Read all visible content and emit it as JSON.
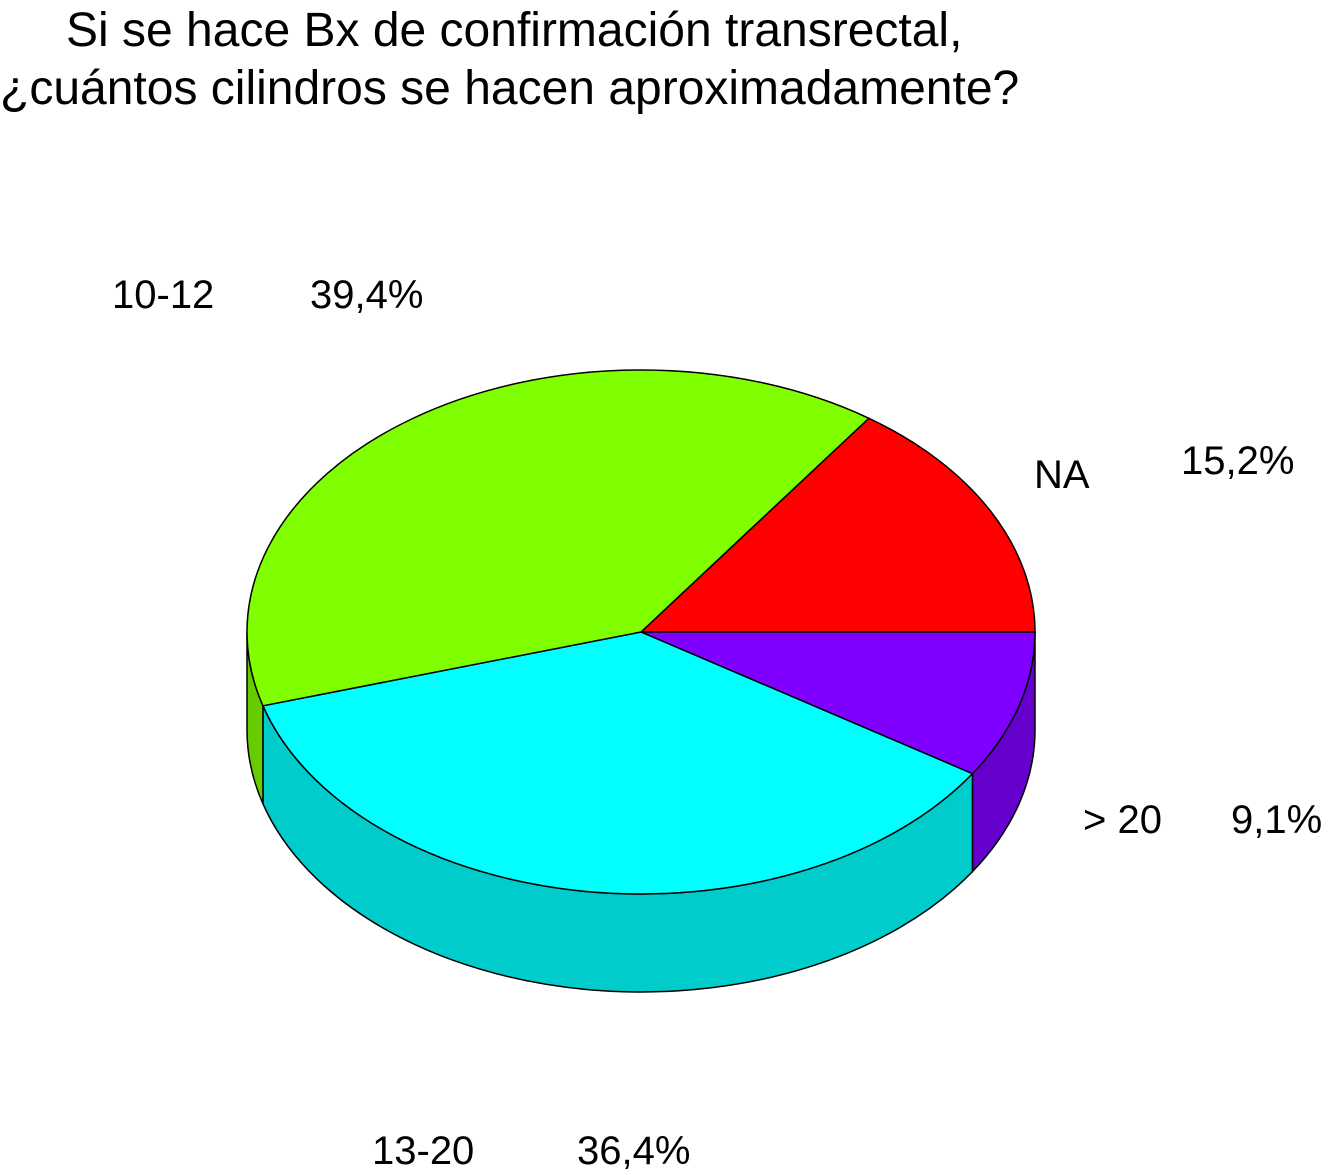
{
  "chart_data": {
    "type": "pie",
    "title_line1": "Si se hace Bx de confirmación transrectal,",
    "title_line2": "¿cuántos cilindros se hacen aproximadamente?",
    "slices": [
      {
        "label": "NA",
        "value": 15.2,
        "value_text": "15,2%",
        "color": "#ff0000",
        "side": "#cc0000"
      },
      {
        "label": "> 20",
        "value": 9.1,
        "value_text": "9,1%",
        "color": "#8000ff",
        "side": "#6600cc"
      },
      {
        "label": "13-20",
        "value": 36.4,
        "value_text": "36,4%",
        "color": "#00ffff",
        "side": "#00cccc"
      },
      {
        "label": "10-12",
        "value": 39.4,
        "value_text": "39,4%",
        "color": "#80ff00",
        "side": "#66cc00"
      }
    ],
    "style": "3d"
  }
}
